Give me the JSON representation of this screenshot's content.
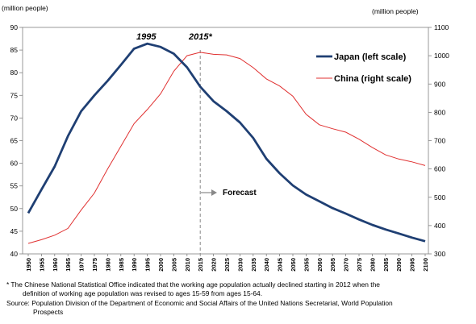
{
  "chart_data": {
    "type": "line",
    "left_unit": "(million people)",
    "right_unit": "(million people)",
    "x": [
      1950,
      1955,
      1960,
      1965,
      1970,
      1975,
      1980,
      1985,
      1990,
      1995,
      2000,
      2005,
      2010,
      2015,
      2020,
      2025,
      2030,
      2035,
      2040,
      2045,
      2050,
      2055,
      2060,
      2065,
      2070,
      2075,
      2080,
      2085,
      2090,
      2095,
      2100
    ],
    "x_tick_labels": [
      "1950",
      "1955",
      "1960",
      "1965",
      "1970",
      "1975",
      "1980",
      "1985",
      "1990",
      "1995",
      "2000",
      "2005",
      "2010",
      "2015",
      "2020",
      "2025",
      "2030",
      "2035",
      "2040",
      "2045",
      "2050",
      "2055",
      "2060",
      "2065",
      "2070",
      "2075",
      "2080",
      "2085",
      "2090",
      "2095",
      "2100"
    ],
    "y_left_ticks": [
      "40",
      "45",
      "50",
      "55",
      "60",
      "65",
      "70",
      "75",
      "80",
      "85",
      "90"
    ],
    "y_right_ticks": [
      "300",
      "400",
      "500",
      "600",
      "700",
      "800",
      "900",
      "1000",
      "1100"
    ],
    "y_left_range": [
      40,
      90
    ],
    "y_right_range": [
      300,
      1100
    ],
    "series": [
      {
        "name": "Japan (left scale)",
        "axis": "left",
        "color": "#1f3f73",
        "values": [
          49.0,
          54.2,
          59.3,
          66.0,
          71.5,
          75.0,
          78.2,
          81.7,
          85.3,
          86.4,
          85.7,
          84.2,
          81.2,
          76.9,
          73.7,
          71.5,
          69.0,
          65.6,
          61.0,
          57.8,
          55.1,
          53.1,
          51.6,
          50.1,
          48.9,
          47.6,
          46.4,
          45.4,
          44.5,
          43.6,
          42.8
        ]
      },
      {
        "name": "China (right scale)",
        "axis": "right",
        "color": "#e03030",
        "values": [
          337,
          350,
          366,
          390,
          455,
          515,
          600,
          680,
          760,
          810,
          865,
          945,
          1000,
          1012,
          1005,
          1003,
          990,
          958,
          918,
          893,
          857,
          793,
          756,
          742,
          730,
          705,
          676,
          650,
          635,
          625,
          612
        ]
      }
    ],
    "annotations": {
      "peak_japan": "1995",
      "peak_china": "2015*",
      "forecast": "Forecast"
    },
    "grid": false,
    "legend_position": "top-right"
  },
  "footnote": {
    "line1": "* The  Chinese  National  Statistical Office indicated that the working age population actually declined starting in 2012  when  the",
    "line2": "definition of working age population was revised to ages 15-59  from ages 15-64.",
    "line3": "Source: Population Division of the Department of Economic and Social Affairs of the United Nations Secretariat, World Population",
    "line4": "Prospects"
  }
}
